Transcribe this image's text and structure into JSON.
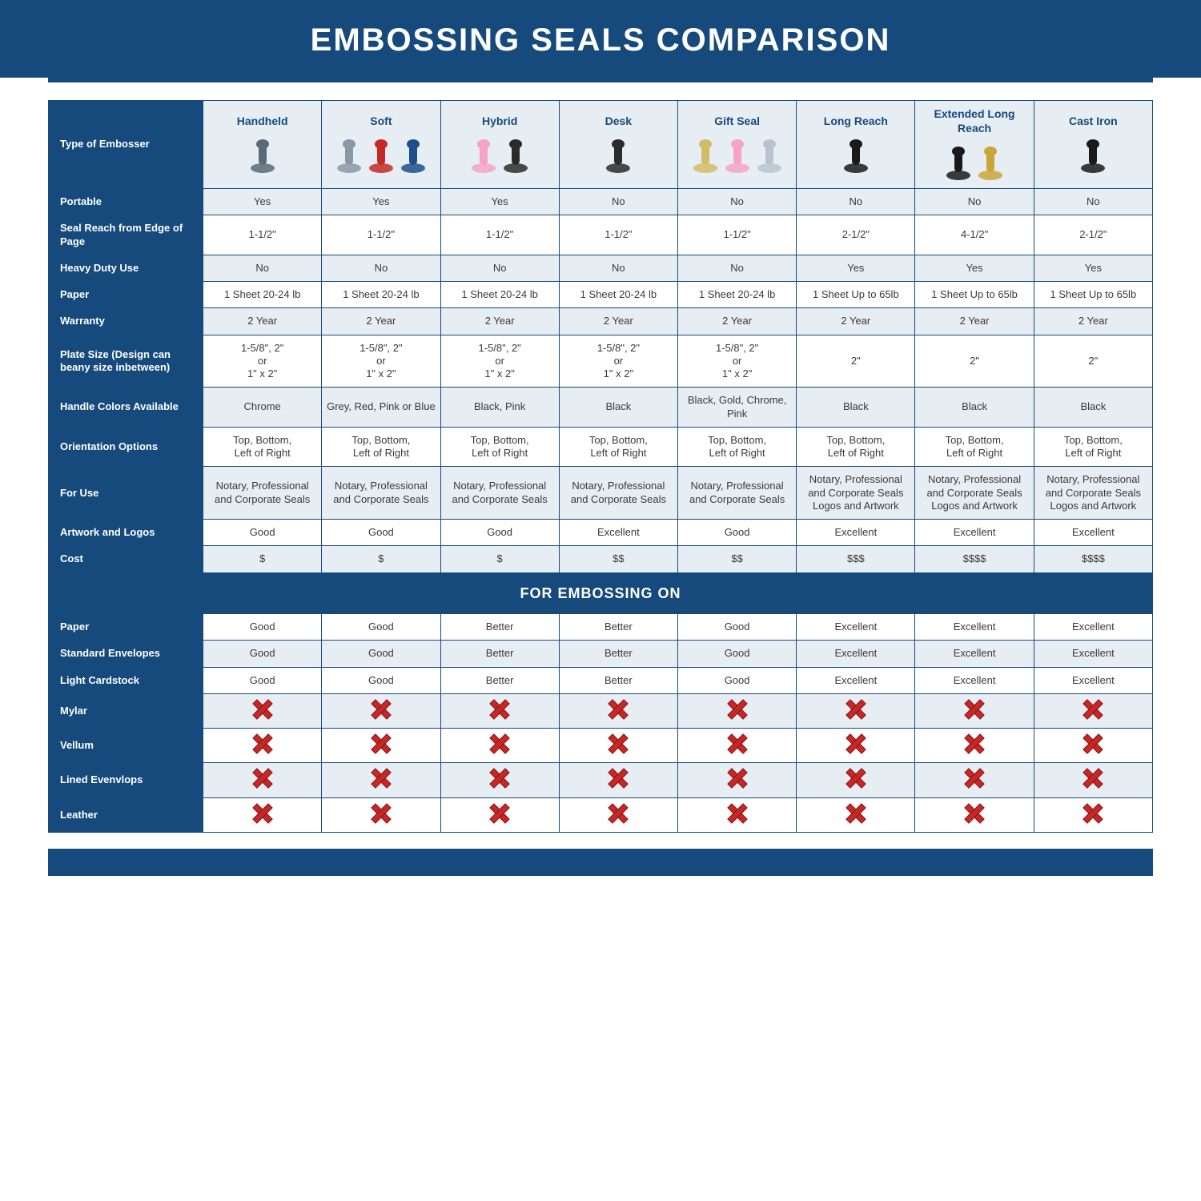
{
  "colors": {
    "brand": "#174a7c",
    "brand_dark": "#10365a",
    "header_row_bg": "#174a7c",
    "header_row_text": "#ffffff",
    "cell_border": "#174a7c",
    "body_text": "#3a3a3a",
    "zebra_a": "#e6edf3",
    "zebra_b": "#ffffff",
    "title_bg": "#174a7c",
    "title_text": "#ffffff",
    "title_fontsize": 40,
    "x_mark": "#c62828"
  },
  "title": "EMBOSSING SEALS COMPARISON",
  "row_header_width_pct": 14,
  "columns": [
    {
      "label": "Handheld",
      "icon_colors": [
        "#5b6a78"
      ]
    },
    {
      "label": "Soft",
      "icon_colors": [
        "#8a98a6",
        "#c62828",
        "#1e4f8a"
      ]
    },
    {
      "label": "Hybrid",
      "icon_colors": [
        "#f5a3c6",
        "#2b2b2b"
      ]
    },
    {
      "label": "Desk",
      "icon_colors": [
        "#2b2b2b"
      ]
    },
    {
      "label": "Gift Seal",
      "icon_colors": [
        "#d4bc66",
        "#f5a3c6",
        "#b8c4cc"
      ]
    },
    {
      "label": "Long Reach",
      "icon_colors": [
        "#1a1a1a"
      ]
    },
    {
      "label": "Extended Long Reach",
      "icon_colors": [
        "#1a1a1a",
        "#caa63a"
      ]
    },
    {
      "label": "Cast Iron",
      "icon_colors": [
        "#1a1a1a"
      ]
    }
  ],
  "type_row_label": "Type of Embosser",
  "rows_top": [
    {
      "label": "Portable",
      "cells": [
        "Yes",
        "Yes",
        "Yes",
        "No",
        "No",
        "No",
        "No",
        "No"
      ]
    },
    {
      "label": "Seal Reach from Edge of Page",
      "cells": [
        "1-1/2\"",
        "1-1/2\"",
        "1-1/2\"",
        "1-1/2\"",
        "1-1/2\"",
        "2-1/2\"",
        "4-1/2\"",
        "2-1/2\""
      ]
    },
    {
      "label": "Heavy Duty Use",
      "cells": [
        "No",
        "No",
        "No",
        "No",
        "No",
        "Yes",
        "Yes",
        "Yes"
      ]
    },
    {
      "label": "Paper",
      "cells": [
        "1 Sheet 20-24 lb",
        "1 Sheet 20-24 lb",
        "1 Sheet 20-24 lb",
        "1 Sheet 20-24 lb",
        "1 Sheet 20-24 lb",
        "1 Sheet Up to 65lb",
        "1 Sheet Up to 65lb",
        "1 Sheet Up to 65lb"
      ]
    },
    {
      "label": "Warranty",
      "cells": [
        "2 Year",
        "2 Year",
        "2 Year",
        "2 Year",
        "2 Year",
        "2 Year",
        "2 Year",
        "2 Year"
      ]
    },
    {
      "label": "Plate Size (Design can beany size inbetween)",
      "cells": [
        "1-5/8\", 2\"\nor\n1\" x 2\"",
        "1-5/8\", 2\"\nor\n1\" x 2\"",
        "1-5/8\", 2\"\nor\n1\" x 2\"",
        "1-5/8\", 2\"\nor\n1\" x 2\"",
        "1-5/8\", 2\"\nor\n1\" x 2\"",
        "2\"",
        "2\"",
        "2\""
      ]
    },
    {
      "label": "Handle Colors Available",
      "cells": [
        "Chrome",
        "Grey, Red, Pink or Blue",
        "Black, Pink",
        "Black",
        "Black, Gold, Chrome, Pink",
        "Black",
        "Black",
        "Black"
      ]
    },
    {
      "label": "Orientation Options",
      "cells": [
        "Top, Bottom,\nLeft of Right",
        "Top, Bottom,\nLeft of Right",
        "Top, Bottom,\nLeft of Right",
        "Top, Bottom,\nLeft of Right",
        "Top, Bottom,\nLeft of Right",
        "Top, Bottom,\nLeft of Right",
        "Top, Bottom,\nLeft of Right",
        "Top, Bottom,\nLeft of Right"
      ]
    },
    {
      "label": "For Use",
      "cells": [
        "Notary, Professional and Corporate Seals",
        "Notary, Professional and Corporate Seals",
        "Notary, Professional and Corporate Seals",
        "Notary, Professional and Corporate Seals",
        "Notary, Professional and Corporate Seals",
        "Notary, Professional and Corporate Seals Logos and Artwork",
        "Notary, Professional and Corporate Seals Logos and Artwork",
        "Notary, Professional and Corporate Seals Logos and Artwork"
      ]
    },
    {
      "label": "Artwork and Logos",
      "cells": [
        "Good",
        "Good",
        "Good",
        "Excellent",
        "Good",
        "Excellent",
        "Excellent",
        "Excellent"
      ]
    },
    {
      "label": "Cost",
      "cells": [
        "$",
        "$",
        "$",
        "$$",
        "$$",
        "$$$",
        "$$$$",
        "$$$$"
      ]
    }
  ],
  "section_label": "FOR EMBOSSING ON",
  "rows_bottom": [
    {
      "label": "Paper",
      "cells": [
        "Good",
        "Good",
        "Better",
        "Better",
        "Good",
        "Excellent",
        "Excellent",
        "Excellent"
      ]
    },
    {
      "label": "Standard Envelopes",
      "cells": [
        "Good",
        "Good",
        "Better",
        "Better",
        "Good",
        "Excellent",
        "Excellent",
        "Excellent"
      ]
    },
    {
      "label": "Light Cardstock",
      "cells": [
        "Good",
        "Good",
        "Better",
        "Better",
        "Good",
        "Excellent",
        "Excellent",
        "Excellent"
      ]
    },
    {
      "label": "Mylar",
      "cells": [
        "X",
        "X",
        "X",
        "X",
        "X",
        "X",
        "X",
        "X"
      ]
    },
    {
      "label": "Vellum",
      "cells": [
        "X",
        "X",
        "X",
        "X",
        "X",
        "X",
        "X",
        "X"
      ]
    },
    {
      "label": "Lined Evenvlops",
      "cells": [
        "X",
        "X",
        "X",
        "X",
        "X",
        "X",
        "X",
        "X"
      ]
    },
    {
      "label": "Leather",
      "cells": [
        "X",
        "X",
        "X",
        "X",
        "X",
        "X",
        "X",
        "X"
      ]
    }
  ]
}
